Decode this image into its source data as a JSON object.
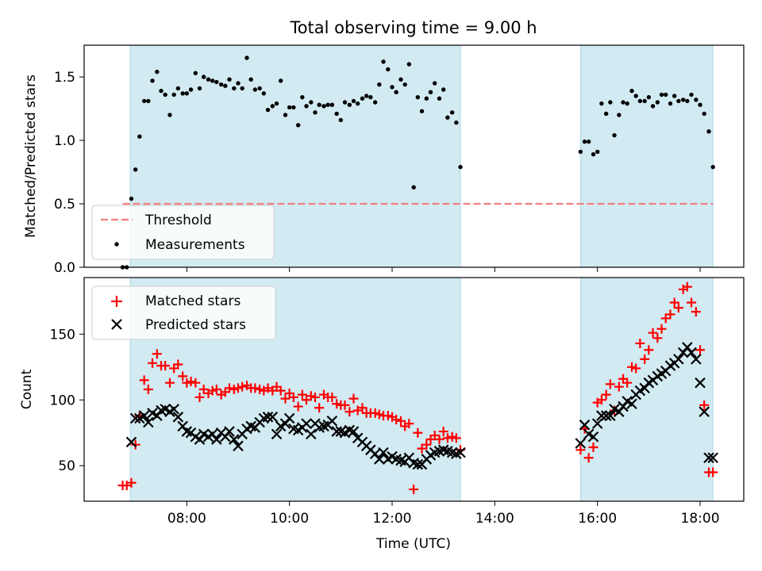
{
  "figure": {
    "title": "Total observing time = 9.00 h",
    "xlabel": "Time (UTC)",
    "x_ticks": [
      "08:00",
      "10:00",
      "12:00",
      "14:00",
      "16:00",
      "18:00"
    ],
    "x_tick_hours": [
      8,
      10,
      12,
      14,
      16,
      18
    ],
    "xlim": [
      6.0,
      18.85
    ],
    "observing_windows": [
      [
        6.9,
        13.33
      ],
      [
        15.67,
        18.25
      ]
    ],
    "colors": {
      "window": "#add8e6",
      "threshold": "#f08080",
      "matched": "#ff0000",
      "predicted": "#000000",
      "measurement": "#000000"
    }
  },
  "chart_data": [
    {
      "type": "scatter",
      "ylabel": "Matched/Predicted stars",
      "ylim": [
        0,
        1.75
      ],
      "y_ticks": [
        "0.0",
        "0.5",
        "1.0",
        "1.5"
      ],
      "y_tick_values": [
        0,
        0.5,
        1.0,
        1.5
      ],
      "legend_position": "lower-left",
      "threshold": {
        "name": "Threshold",
        "y": 0.5,
        "x_range": [
          6.75,
          18.25
        ]
      },
      "series": [
        {
          "name": "Measurements",
          "x": [
            6.75,
            6.83,
            6.92,
            7.0,
            7.08,
            7.17,
            7.25,
            7.33,
            7.42,
            7.5,
            7.58,
            7.67,
            7.75,
            7.83,
            7.92,
            8.0,
            8.08,
            8.17,
            8.25,
            8.33,
            8.42,
            8.5,
            8.58,
            8.67,
            8.75,
            8.83,
            8.92,
            9.0,
            9.08,
            9.17,
            9.25,
            9.33,
            9.42,
            9.5,
            9.58,
            9.67,
            9.75,
            9.83,
            9.92,
            10.0,
            10.08,
            10.17,
            10.25,
            10.33,
            10.42,
            10.5,
            10.58,
            10.67,
            10.75,
            10.83,
            10.92,
            11.0,
            11.08,
            11.17,
            11.25,
            11.33,
            11.42,
            11.5,
            11.58,
            11.67,
            11.75,
            11.83,
            11.92,
            12.0,
            12.08,
            12.17,
            12.25,
            12.33,
            12.42,
            12.5,
            12.58,
            12.67,
            12.75,
            12.83,
            12.92,
            13.0,
            13.08,
            13.17,
            13.25,
            13.33,
            15.67,
            15.75,
            15.83,
            15.92,
            16.0,
            16.08,
            16.17,
            16.25,
            16.33,
            16.42,
            16.5,
            16.58,
            16.67,
            16.75,
            16.83,
            16.92,
            17.0,
            17.08,
            17.17,
            17.25,
            17.33,
            17.42,
            17.5,
            17.58,
            17.67,
            17.75,
            17.83,
            17.92,
            18.0,
            18.08,
            18.17,
            18.25
          ],
          "y": [
            0.0,
            0.0,
            0.54,
            0.77,
            1.03,
            1.31,
            1.31,
            1.47,
            1.54,
            1.39,
            1.36,
            1.2,
            1.36,
            1.41,
            1.37,
            1.37,
            1.4,
            1.53,
            1.41,
            1.5,
            1.48,
            1.47,
            1.46,
            1.44,
            1.43,
            1.48,
            1.41,
            1.45,
            1.41,
            1.65,
            1.48,
            1.4,
            1.41,
            1.37,
            1.24,
            1.27,
            1.29,
            1.47,
            1.2,
            1.26,
            1.26,
            1.12,
            1.34,
            1.27,
            1.3,
            1.22,
            1.28,
            1.27,
            1.28,
            1.28,
            1.21,
            1.16,
            1.3,
            1.28,
            1.31,
            1.29,
            1.33,
            1.35,
            1.34,
            1.3,
            1.44,
            1.62,
            1.56,
            1.42,
            1.38,
            1.48,
            1.44,
            1.6,
            0.63,
            1.34,
            1.23,
            1.33,
            1.38,
            1.45,
            1.33,
            1.4,
            1.18,
            1.22,
            1.14,
            0.79,
            0.91,
            0.99,
            0.99,
            0.89,
            0.91,
            1.29,
            1.21,
            1.3,
            1.04,
            1.2,
            1.3,
            1.29,
            1.39,
            1.35,
            1.31,
            1.31,
            1.34,
            1.27,
            1.3,
            1.36,
            1.36,
            1.29,
            1.35,
            1.31,
            1.32,
            1.31,
            1.36,
            1.32,
            1.28,
            1.21,
            1.07,
            0.79
          ]
        }
      ]
    },
    {
      "type": "scatter",
      "ylabel": "Count",
      "ylim": [
        23,
        193
      ],
      "y_ticks": [
        "50",
        "100",
        "150"
      ],
      "y_tick_values": [
        50,
        100,
        150
      ],
      "legend_position": "upper-left",
      "series": [
        {
          "name": "Matched stars",
          "x": [
            6.75,
            6.83,
            6.92,
            7.0,
            7.08,
            7.17,
            7.25,
            7.33,
            7.42,
            7.5,
            7.58,
            7.67,
            7.75,
            7.83,
            7.92,
            8.0,
            8.08,
            8.17,
            8.25,
            8.33,
            8.42,
            8.5,
            8.58,
            8.67,
            8.75,
            8.83,
            8.92,
            9.0,
            9.08,
            9.17,
            9.25,
            9.33,
            9.42,
            9.5,
            9.58,
            9.67,
            9.75,
            9.83,
            9.92,
            10.0,
            10.08,
            10.17,
            10.25,
            10.33,
            10.42,
            10.5,
            10.58,
            10.67,
            10.75,
            10.83,
            10.92,
            11.0,
            11.08,
            11.17,
            11.25,
            11.33,
            11.42,
            11.5,
            11.58,
            11.67,
            11.75,
            11.83,
            11.92,
            12.0,
            12.08,
            12.17,
            12.25,
            12.33,
            12.42,
            12.5,
            12.58,
            12.67,
            12.75,
            12.83,
            12.92,
            13.0,
            13.08,
            13.17,
            13.25,
            13.33,
            15.67,
            15.75,
            15.83,
            15.92,
            16.0,
            16.08,
            16.17,
            16.25,
            16.33,
            16.42,
            16.5,
            16.58,
            16.67,
            16.75,
            16.83,
            16.92,
            17.0,
            17.08,
            17.17,
            17.25,
            17.33,
            17.42,
            17.5,
            17.58,
            17.67,
            17.75,
            17.83,
            17.92,
            18.0,
            18.08,
            18.17,
            18.25
          ],
          "y": [
            35,
            35,
            37,
            66,
            88,
            115,
            108,
            128,
            135,
            126,
            126,
            113,
            124,
            127,
            118,
            113,
            114,
            113,
            102,
            108,
            105,
            107,
            108,
            104,
            106,
            109,
            108,
            109,
            110,
            111,
            109,
            109,
            108,
            107,
            109,
            107,
            110,
            107,
            101,
            105,
            102,
            95,
            104,
            100,
            103,
            102,
            94,
            104,
            102,
            102,
            97,
            96,
            96,
            91,
            101,
            92,
            94,
            90,
            90,
            90,
            89,
            88,
            88,
            87,
            85,
            84,
            80,
            82,
            32,
            75,
            63,
            66,
            70,
            73,
            70,
            76,
            71,
            72,
            71,
            62,
            62,
            78,
            56,
            64,
            98,
            100,
            104,
            112,
            92,
            110,
            116,
            113,
            125,
            124,
            143,
            131,
            138,
            151,
            147,
            154,
            162,
            165,
            174,
            170,
            184,
            186,
            174,
            167,
            138,
            96,
            45,
            45
          ]
        },
        {
          "name": "Predicted stars",
          "x": [
            6.92,
            7.0,
            7.08,
            7.17,
            7.25,
            7.33,
            7.42,
            7.5,
            7.58,
            7.67,
            7.75,
            7.83,
            7.92,
            8.0,
            8.08,
            8.17,
            8.25,
            8.33,
            8.42,
            8.5,
            8.58,
            8.67,
            8.75,
            8.83,
            8.92,
            9.0,
            9.08,
            9.17,
            9.25,
            9.33,
            9.42,
            9.5,
            9.58,
            9.67,
            9.75,
            9.83,
            9.92,
            10.0,
            10.08,
            10.17,
            10.25,
            10.33,
            10.42,
            10.5,
            10.58,
            10.67,
            10.75,
            10.83,
            10.92,
            11.0,
            11.08,
            11.17,
            11.25,
            11.33,
            11.42,
            11.5,
            11.58,
            11.67,
            11.75,
            11.83,
            11.92,
            12.0,
            12.08,
            12.17,
            12.25,
            12.33,
            12.42,
            12.5,
            12.58,
            12.67,
            12.75,
            12.83,
            12.92,
            13.0,
            13.08,
            13.17,
            13.25,
            13.33,
            15.67,
            15.75,
            15.83,
            15.92,
            16.0,
            16.08,
            16.17,
            16.25,
            16.33,
            16.42,
            16.5,
            16.58,
            16.67,
            16.75,
            16.83,
            16.92,
            17.0,
            17.08,
            17.17,
            17.25,
            17.33,
            17.42,
            17.5,
            17.58,
            17.67,
            17.75,
            17.83,
            17.92,
            18.0,
            18.08,
            18.17,
            18.25
          ],
          "y": [
            68,
            86,
            86,
            88,
            83,
            90,
            88,
            92,
            93,
            91,
            93,
            87,
            80,
            76,
            75,
            72,
            70,
            74,
            72,
            74,
            70,
            75,
            72,
            76,
            70,
            65,
            74,
            78,
            80,
            79,
            83,
            86,
            87,
            87,
            74,
            80,
            82,
            86,
            78,
            77,
            79,
            82,
            74,
            82,
            79,
            80,
            81,
            84,
            76,
            76,
            75,
            77,
            76,
            71,
            68,
            65,
            62,
            59,
            55,
            60,
            55,
            57,
            55,
            54,
            53,
            56,
            52,
            51,
            51,
            55,
            58,
            60,
            61,
            62,
            61,
            60,
            59,
            60,
            67,
            81,
            74,
            72,
            82,
            88,
            88,
            88,
            93,
            91,
            95,
            99,
            97,
            104,
            107,
            109,
            113,
            115,
            118,
            120,
            122,
            126,
            128,
            131,
            136,
            140,
            136,
            131,
            113,
            91,
            56,
            56
          ]
        }
      ]
    }
  ]
}
